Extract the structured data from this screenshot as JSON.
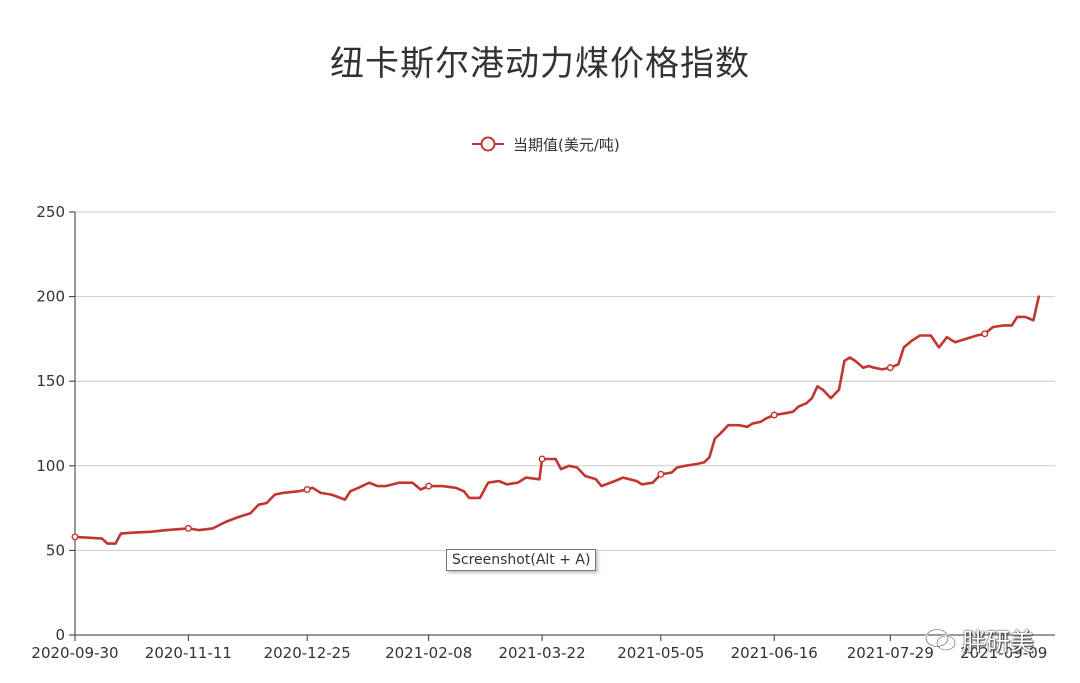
{
  "chart_data": {
    "type": "line",
    "title": "纽卡斯尔港动力煤价格指数",
    "legend": {
      "placement": "top-center"
    },
    "xlabel": "",
    "ylabel": "",
    "ylim": [
      0,
      250
    ],
    "yticks": [
      0,
      50,
      100,
      150,
      200,
      250
    ],
    "grid": true,
    "xtick_labels": [
      "2020-09-30",
      "2020-11-11",
      "2020-12-25",
      "2021-02-08",
      "2021-03-22",
      "2021-05-05",
      "2021-06-16",
      "2021-07-29",
      "2021-09-09"
    ],
    "x_start": "2020-09-30",
    "x_end": "2021-09-28",
    "color": "#c23531",
    "series": [
      {
        "name": "当期值(美元/吨)",
        "points": [
          [
            "2020-09-30",
            58
          ],
          [
            "2020-10-05",
            57.5
          ],
          [
            "2020-10-10",
            57
          ],
          [
            "2020-10-12",
            54
          ],
          [
            "2020-10-15",
            54
          ],
          [
            "2020-10-17",
            60
          ],
          [
            "2020-10-22",
            60.5
          ],
          [
            "2020-10-28",
            61
          ],
          [
            "2020-11-03",
            62
          ],
          [
            "2020-11-11",
            63
          ],
          [
            "2020-11-15",
            62
          ],
          [
            "2020-11-20",
            63
          ],
          [
            "2020-11-25",
            67
          ],
          [
            "2020-11-30",
            70
          ],
          [
            "2020-12-04",
            72
          ],
          [
            "2020-12-07",
            77
          ],
          [
            "2020-12-10",
            78
          ],
          [
            "2020-12-13",
            83
          ],
          [
            "2020-12-16",
            84
          ],
          [
            "2020-12-22",
            85
          ],
          [
            "2020-12-25",
            86
          ],
          [
            "2020-12-27",
            87
          ],
          [
            "2020-12-30",
            84
          ],
          [
            "2021-01-03",
            83
          ],
          [
            "2021-01-08",
            80
          ],
          [
            "2021-01-10",
            85
          ],
          [
            "2021-01-13",
            87
          ],
          [
            "2021-01-17",
            90
          ],
          [
            "2021-01-20",
            88
          ],
          [
            "2021-01-23",
            88
          ],
          [
            "2021-01-28",
            90
          ],
          [
            "2021-02-02",
            90
          ],
          [
            "2021-02-05",
            86
          ],
          [
            "2021-02-08",
            88
          ],
          [
            "2021-02-13",
            88
          ],
          [
            "2021-02-18",
            87
          ],
          [
            "2021-02-21",
            85
          ],
          [
            "2021-02-23",
            81
          ],
          [
            "2021-02-27",
            81
          ],
          [
            "2021-03-02",
            90
          ],
          [
            "2021-03-06",
            91
          ],
          [
            "2021-03-09",
            89
          ],
          [
            "2021-03-13",
            90
          ],
          [
            "2021-03-16",
            93
          ],
          [
            "2021-03-21",
            92
          ],
          [
            "2021-03-22",
            104
          ],
          [
            "2021-03-27",
            104
          ],
          [
            "2021-03-29",
            98
          ],
          [
            "2021-04-01",
            100
          ],
          [
            "2021-04-04",
            99
          ],
          [
            "2021-04-07",
            94
          ],
          [
            "2021-04-11",
            92
          ],
          [
            "2021-04-13",
            88
          ],
          [
            "2021-04-18",
            91
          ],
          [
            "2021-04-21",
            93
          ],
          [
            "2021-04-26",
            91
          ],
          [
            "2021-04-28",
            89
          ],
          [
            "2021-05-02",
            90
          ],
          [
            "2021-05-05",
            95
          ],
          [
            "2021-05-09",
            96
          ],
          [
            "2021-05-11",
            99
          ],
          [
            "2021-05-14",
            100
          ],
          [
            "2021-05-18",
            101
          ],
          [
            "2021-05-21",
            102
          ],
          [
            "2021-05-23",
            105
          ],
          [
            "2021-05-25",
            116
          ],
          [
            "2021-05-27",
            119
          ],
          [
            "2021-05-30",
            124
          ],
          [
            "2021-06-03",
            124
          ],
          [
            "2021-06-06",
            123
          ],
          [
            "2021-06-08",
            125
          ],
          [
            "2021-06-11",
            126
          ],
          [
            "2021-06-13",
            128
          ],
          [
            "2021-06-16",
            130
          ],
          [
            "2021-06-20",
            131
          ],
          [
            "2021-06-23",
            132
          ],
          [
            "2021-06-25",
            135
          ],
          [
            "2021-06-28",
            137
          ],
          [
            "2021-06-30",
            140
          ],
          [
            "2021-07-02",
            147
          ],
          [
            "2021-07-04",
            145
          ],
          [
            "2021-07-07",
            140
          ],
          [
            "2021-07-10",
            145
          ],
          [
            "2021-07-12",
            162
          ],
          [
            "2021-07-14",
            164
          ],
          [
            "2021-07-16",
            162
          ],
          [
            "2021-07-19",
            158
          ],
          [
            "2021-07-21",
            159
          ],
          [
            "2021-07-23",
            158
          ],
          [
            "2021-07-26",
            157
          ],
          [
            "2021-07-29",
            158
          ],
          [
            "2021-08-01",
            160
          ],
          [
            "2021-08-03",
            170
          ],
          [
            "2021-08-06",
            174
          ],
          [
            "2021-08-09",
            177
          ],
          [
            "2021-08-13",
            177
          ],
          [
            "2021-08-16",
            170
          ],
          [
            "2021-08-19",
            176
          ],
          [
            "2021-08-22",
            173
          ],
          [
            "2021-08-26",
            175
          ],
          [
            "2021-08-30",
            177
          ],
          [
            "2021-09-02",
            178
          ],
          [
            "2021-09-05",
            182
          ],
          [
            "2021-09-09",
            183
          ],
          [
            "2021-09-12",
            183
          ],
          [
            "2021-09-14",
            188
          ],
          [
            "2021-09-17",
            188
          ],
          [
            "2021-09-20",
            186
          ],
          [
            "2021-09-22",
            200
          ]
        ],
        "markers": [
          [
            "2020-09-30",
            58
          ],
          [
            "2020-11-11",
            63
          ],
          [
            "2020-12-25",
            86
          ],
          [
            "2021-02-08",
            88
          ],
          [
            "2021-03-22",
            104
          ],
          [
            "2021-05-05",
            95
          ],
          [
            "2021-06-16",
            130
          ],
          [
            "2021-07-29",
            158
          ],
          [
            "2021-09-02",
            178
          ]
        ]
      }
    ]
  },
  "tooltip": {
    "text": "Screenshot(Alt + A)"
  },
  "watermark": {
    "text": "胖研美"
  }
}
